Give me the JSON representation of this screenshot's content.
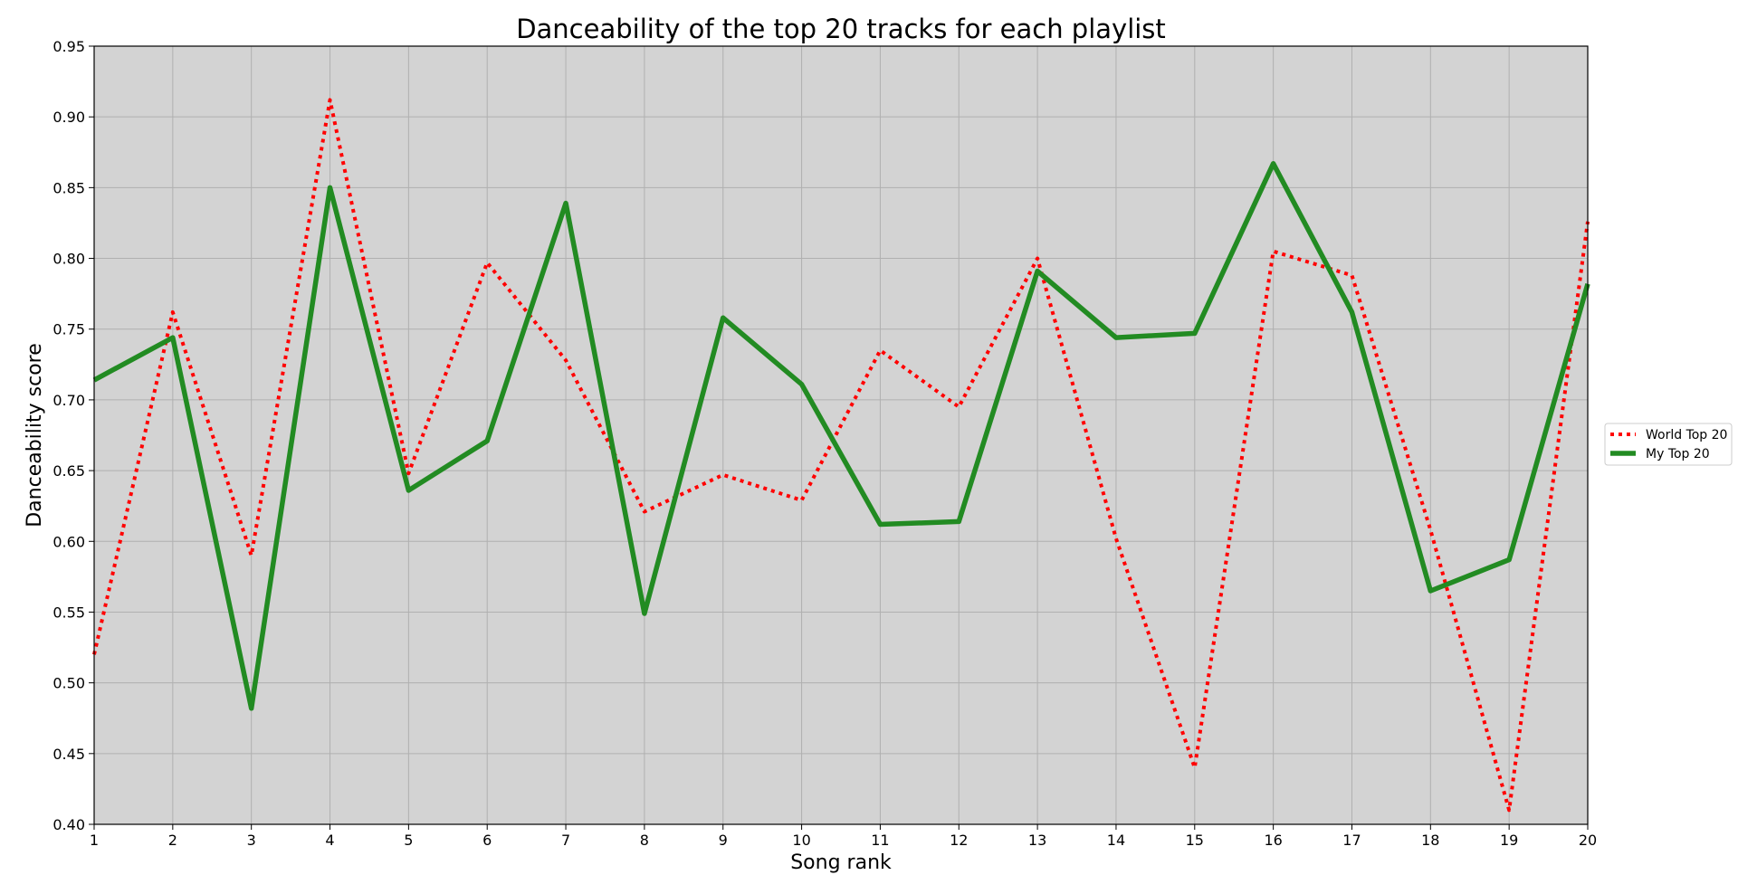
{
  "chart_data": {
    "type": "line",
    "title": "Danceability of the top 20 tracks for each playlist",
    "xlabel": "Song rank",
    "ylabel": "Danceability score",
    "xlim": [
      1,
      20
    ],
    "ylim": [
      0.4,
      0.95
    ],
    "x": [
      1,
      2,
      3,
      4,
      5,
      6,
      7,
      8,
      9,
      10,
      11,
      12,
      13,
      14,
      15,
      16,
      17,
      18,
      19,
      20
    ],
    "x_ticks": [
      "1",
      "2",
      "3",
      "4",
      "5",
      "6",
      "7",
      "8",
      "9",
      "10",
      "11",
      "12",
      "13",
      "14",
      "15",
      "16",
      "17",
      "18",
      "19",
      "20"
    ],
    "y_ticks": [
      "0.40",
      "0.45",
      "0.50",
      "0.55",
      "0.60",
      "0.65",
      "0.70",
      "0.75",
      "0.80",
      "0.85",
      "0.90",
      "0.95"
    ],
    "grid": true,
    "legend_position": "center-right outside",
    "plot_background": "#d3d3d3",
    "series": [
      {
        "name": "World Top 20",
        "color": "#ff0000",
        "style": "dotted",
        "values": [
          0.52,
          0.762,
          0.59,
          0.912,
          0.648,
          0.797,
          0.728,
          0.621,
          0.647,
          0.629,
          0.735,
          0.695,
          0.8,
          0.602,
          0.44,
          0.805,
          0.788,
          0.608,
          0.41,
          0.826
        ]
      },
      {
        "name": "My Top 20",
        "color": "#228b22",
        "style": "solid",
        "values": [
          0.714,
          0.744,
          0.482,
          0.85,
          0.636,
          0.671,
          0.839,
          0.549,
          0.758,
          0.711,
          0.612,
          0.614,
          0.791,
          0.744,
          0.747,
          0.867,
          0.762,
          0.565,
          0.587,
          0.782
        ]
      }
    ]
  }
}
